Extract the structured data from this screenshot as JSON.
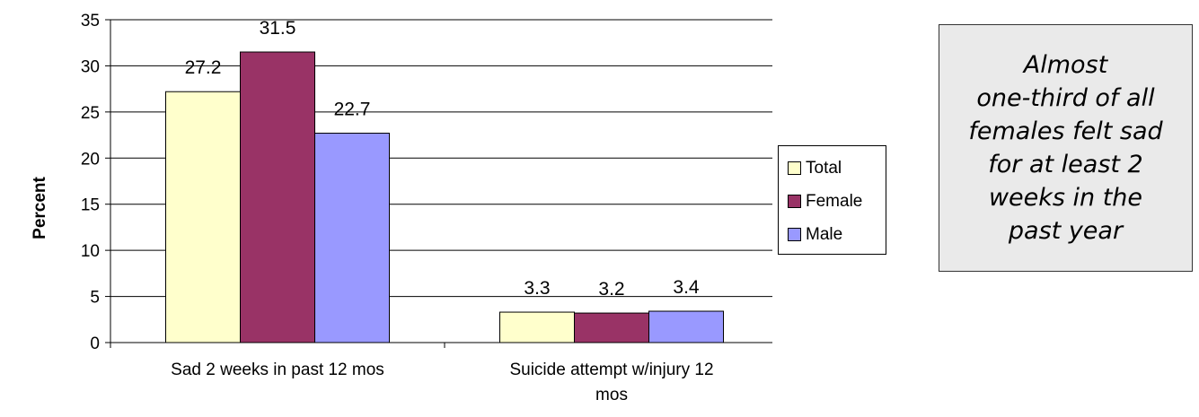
{
  "chart_data": {
    "type": "bar",
    "categories": [
      "Sad 2 weeks in past 12 mos",
      "Suicide attempt w/injury 12 mos"
    ],
    "category_label_lines": [
      [
        "Sad 2 weeks in past 12 mos"
      ],
      [
        "Suicide attempt w/injury 12",
        "mos"
      ]
    ],
    "series": [
      {
        "name": "Total",
        "values": [
          27.2,
          3.3
        ],
        "labels": [
          "27.2",
          "3.3"
        ],
        "color": "#ffffcc"
      },
      {
        "name": "Female",
        "values": [
          31.5,
          3.2
        ],
        "labels": [
          "31.5",
          "3.2"
        ],
        "color": "#993366"
      },
      {
        "name": "Male",
        "values": [
          22.7,
          3.4
        ],
        "labels": [
          "22.7",
          "3.4"
        ],
        "color": "#9999ff"
      }
    ],
    "xlabel": "",
    "ylabel": "Percent",
    "ylim": [
      0,
      35
    ],
    "yticks": [
      0,
      5,
      10,
      15,
      20,
      25,
      30,
      35
    ],
    "grid": true,
    "legend_position": "right"
  },
  "callout": {
    "text": "Almost\none-third of all\nfemales felt sad\nfor at least 2\nweeks in the\npast year"
  },
  "colors": {
    "gridline": "#000000",
    "callout_background": "#eaeaea"
  }
}
